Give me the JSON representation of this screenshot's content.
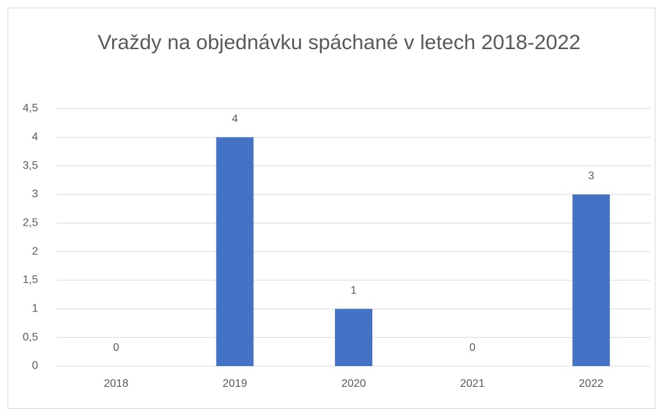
{
  "chart_data": {
    "type": "bar",
    "title": "Vraždy na objednávku spáchané v letech 2018-2022",
    "categories": [
      "2018",
      "2019",
      "2020",
      "2021",
      "2022"
    ],
    "values": [
      0,
      4,
      1,
      0,
      3
    ],
    "color": "#4472c4",
    "ylim": [
      0,
      4.5
    ],
    "yticks": [
      0,
      {
        "value": 0.5,
        "label": "0,5"
      },
      1,
      {
        "value": 1.5,
        "label": "1,5"
      },
      2,
      {
        "value": 2.5,
        "label": "2,5"
      },
      3,
      {
        "value": 3.5,
        "label": "3,5"
      },
      4,
      {
        "value": 4.5,
        "label": "4,5"
      }
    ],
    "grid": true
  }
}
